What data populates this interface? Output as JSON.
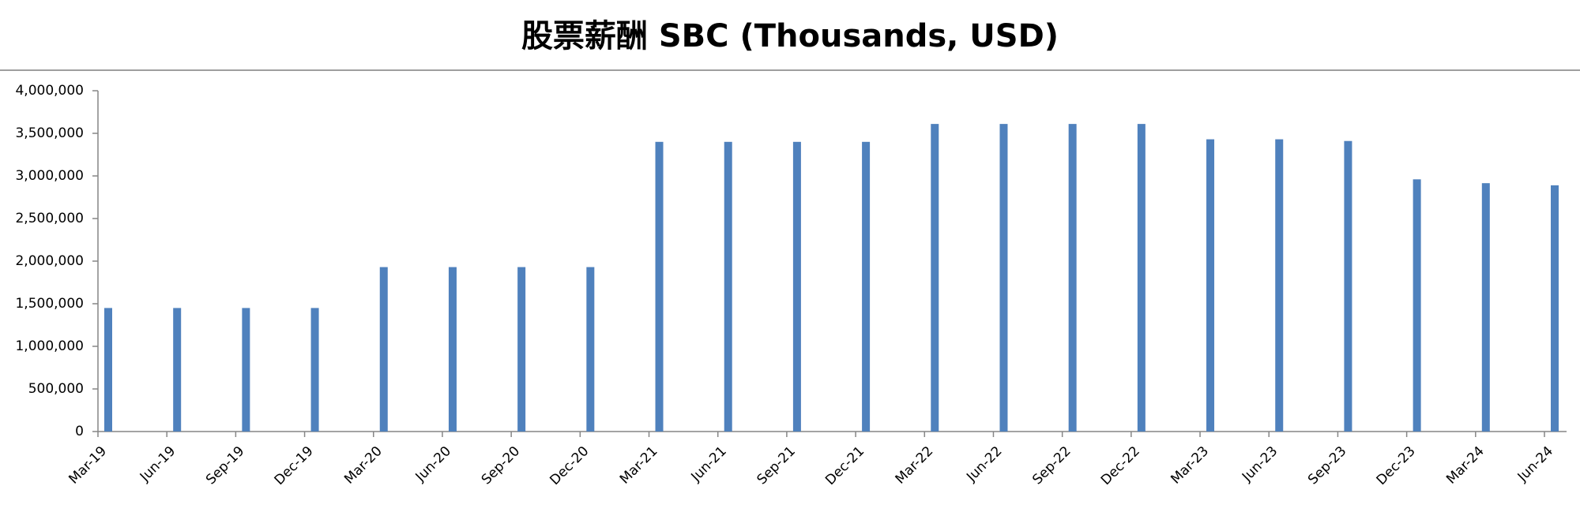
{
  "chart_data": {
    "type": "bar",
    "title": "股票薪酬 SBC (Thousands, USD)",
    "categories": [
      "Mar-19",
      "Jun-19",
      "Sep-19",
      "Dec-19",
      "Mar-20",
      "Jun-20",
      "Sep-20",
      "Dec-20",
      "Mar-21",
      "Jun-21",
      "Sep-21",
      "Dec-21",
      "Mar-22",
      "Jun-22",
      "Sep-22",
      "Dec-22",
      "Mar-23",
      "Jun-23",
      "Sep-23",
      "Dec-23",
      "Mar-24",
      "Jun-24"
    ],
    "values": [
      1450000,
      1450000,
      1450000,
      1450000,
      1930000,
      1930000,
      1930000,
      1930000,
      3400000,
      3400000,
      3400000,
      3400000,
      3610000,
      3610000,
      3610000,
      3610000,
      3430000,
      3430000,
      3410000,
      2960000,
      2915000,
      2890000
    ],
    "color": "#4f81bd",
    "ylim": [
      0,
      4000000
    ],
    "yticks": [
      0,
      {
        "value": 500000,
        "label": "500,000"
      },
      {
        "value": 1000000,
        "label": "1,000,000"
      },
      {
        "value": 1500000,
        "label": "1,500,000"
      },
      {
        "value": 2000000,
        "label": "2,000,000"
      },
      {
        "value": 2500000,
        "label": "2,500,000"
      },
      {
        "value": 3000000,
        "label": "3,000,000"
      },
      {
        "value": 3500000,
        "label": "3,500,000"
      },
      {
        "value": 4000000,
        "label": "4,000,000"
      }
    ],
    "grid": false
  }
}
